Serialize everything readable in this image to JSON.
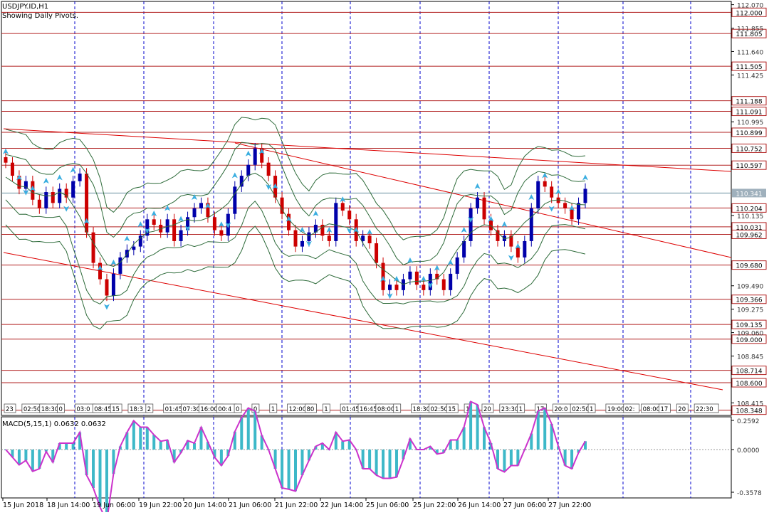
{
  "header": {
    "symbol": "USDJPY.ID,H1",
    "subtitle": "Showing Daily Pivots."
  },
  "colors": {
    "background": "#ffffff",
    "grid": "#0000cc",
    "pivot_line": "#b22222",
    "trend_line": "#dd0000",
    "bull_candle": "#0000aa",
    "bear_candle": "#cc0000",
    "band": "#2e6b3a",
    "macd_hist": "#3db8c8",
    "macd_signal": "#cc33cc",
    "arrow": "#3aaee0",
    "label_box": "#ffffff",
    "label_border": "#b22222"
  },
  "price_axis": {
    "ticks": [
      "112.070",
      "111.855",
      "111.640",
      "111.425",
      "110.995",
      "110.135",
      "109.490",
      "109.275",
      "109.060",
      "108.845",
      "108.415"
    ],
    "pivot_levels": [
      "112.000",
      "111.805",
      "111.505",
      "111.188",
      "111.091",
      "110.899",
      "110.752",
      "110.597",
      "110.204",
      "110.031",
      "109.962",
      "109.680",
      "109.366",
      "109.135",
      "109.000",
      "108.714",
      "108.600",
      "108.348"
    ],
    "current_price": "110.341"
  },
  "time_axis": {
    "labels": [
      "15 Jun 2018",
      "18 Jun 14:00",
      "19 Jun 06:00",
      "19 Jun 22:00",
      "20 Jun 14:00",
      "21 Jun 06:00",
      "21 Jun 22:00",
      "22 Jun 14:00",
      "25 Jun 06:00",
      "25 Jun 22:00",
      "26 Jun 14:00",
      "27 Jun 06:00",
      "27 Jun 22:00"
    ]
  },
  "session_labels": [
    "23",
    "02:50",
    "18:30",
    "0",
    "03:0",
    "08:45",
    "15",
    "18:3",
    "2",
    "01:45",
    "07:30",
    "16:00",
    "00:4",
    "0",
    "0",
    "1",
    "12:00",
    "80",
    "1",
    "01:45",
    "16:45",
    "08:00",
    "1",
    "18:30",
    "02:50",
    "15",
    "1",
    "20",
    "23:30",
    "1",
    "17",
    "20:0",
    "02:50",
    "1",
    "19:00",
    "02:",
    "08:00",
    "17",
    "20",
    "22:30"
  ],
  "macd": {
    "label": "MACD(5,15,1) 0.0632 0.0632",
    "ticks": [
      "0.2592",
      "0.0000",
      "-0.3578"
    ]
  },
  "chart_data": {
    "type": "candlestick",
    "title": "USDJPY.ID,H1",
    "ylim": [
      108.3,
      112.1
    ],
    "pivots": [
      112.0,
      111.805,
      111.505,
      111.188,
      111.091,
      110.899,
      110.752,
      110.597,
      110.204,
      110.031,
      109.962,
      109.68,
      109.366,
      109.135,
      109.0,
      108.714,
      108.6,
      108.348
    ],
    "series": [
      {
        "name": "USDJPY.ID,H1",
        "values": [
          110.62,
          110.5,
          110.38,
          110.45,
          110.28,
          110.2,
          110.35,
          110.25,
          110.38,
          110.3,
          110.45,
          110.52,
          109.98,
          109.7,
          109.55,
          109.4,
          109.6,
          109.75,
          109.82,
          109.85,
          109.95,
          110.1,
          110.05,
          109.98,
          110.1,
          109.9,
          110.0,
          110.12,
          110.2,
          110.25,
          110.12,
          110.0,
          109.95,
          110.15,
          110.4,
          110.5,
          110.6,
          110.75,
          110.62,
          110.5,
          110.3,
          110.15,
          110.0,
          109.85,
          109.9,
          109.98,
          110.05,
          109.95,
          109.9,
          110.25,
          110.18,
          110.1,
          109.9,
          109.95,
          109.88,
          109.7,
          109.45,
          109.5,
          109.45,
          109.55,
          109.62,
          109.5,
          109.45,
          109.6,
          109.55,
          109.45,
          109.6,
          109.75,
          109.9,
          110.2,
          110.3,
          110.1,
          110.0,
          109.9,
          109.95,
          109.85,
          109.75,
          109.9,
          110.2,
          110.45,
          110.4,
          110.3,
          110.25,
          110.2,
          110.1,
          110.25,
          110.38
        ]
      }
    ]
  }
}
